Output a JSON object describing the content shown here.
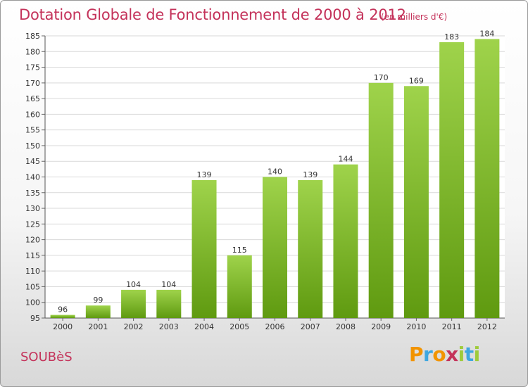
{
  "header": {
    "title": "Dotation Globale de Fonctionnement de 2000 à 2012",
    "subtitle": "(en milliers d'€)"
  },
  "footer": {
    "commune": "SOUBèS",
    "logo": "Proxiti",
    "logo_colors": [
      "#f29400",
      "#3ea7e0",
      "#f29400",
      "#c4325a",
      "#9fcb3b",
      "#3ea7e0",
      "#9fcb3b"
    ]
  },
  "colors": {
    "accent": "#c4325a",
    "bar_top": "#9fd34b",
    "bar_bottom": "#5f9a10",
    "grid": "#d9d9d9"
  },
  "chart_data": {
    "type": "bar",
    "title": "Dotation Globale de Fonctionnement de 2000 à 2012",
    "subtitle": "(en milliers d'€)",
    "categories": [
      "2000",
      "2001",
      "2002",
      "2003",
      "2004",
      "2005",
      "2006",
      "2007",
      "2008",
      "2009",
      "2010",
      "2011",
      "2012"
    ],
    "values": [
      96,
      99,
      104,
      104,
      139,
      115,
      140,
      139,
      144,
      170,
      169,
      183,
      184
    ],
    "ylim": [
      95,
      185
    ],
    "yticks": [
      95,
      100,
      105,
      110,
      115,
      120,
      125,
      130,
      135,
      140,
      145,
      150,
      155,
      160,
      165,
      170,
      175,
      180,
      185
    ],
    "grid": true,
    "xlabel": "",
    "ylabel": ""
  }
}
